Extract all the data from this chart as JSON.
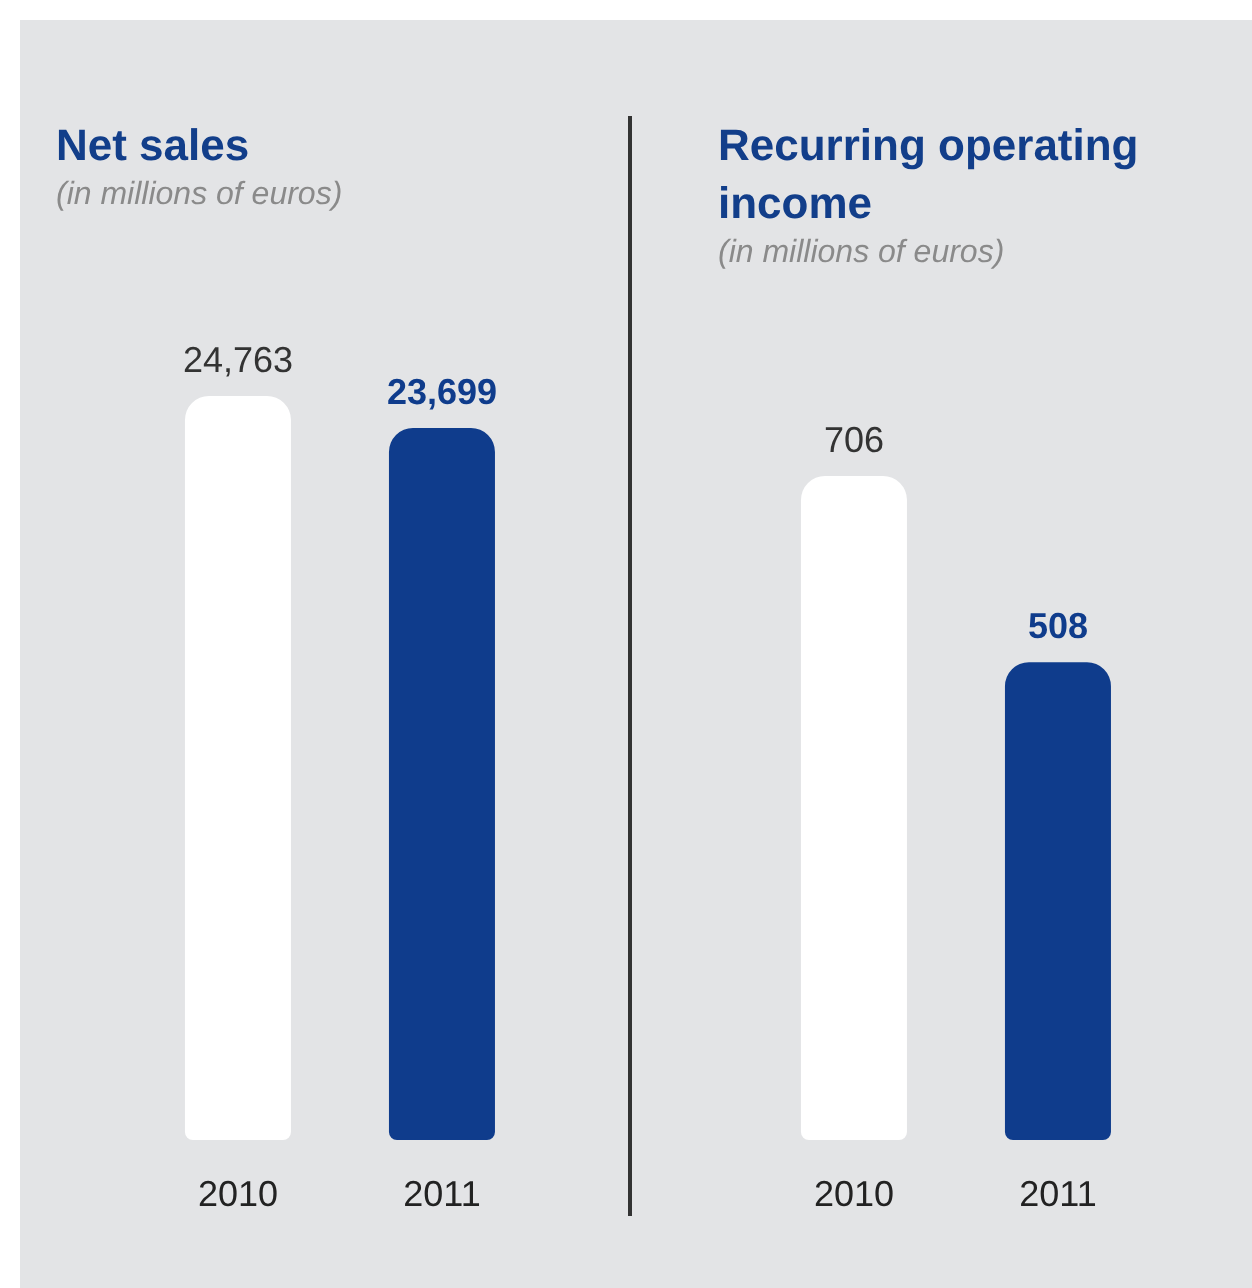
{
  "chart_data": [
    {
      "type": "bar",
      "title": "Net sales",
      "subtitle": "(in millions of euros)",
      "categories": [
        "2010",
        "2011"
      ],
      "values": [
        24763,
        23699
      ],
      "value_labels": [
        "24,763",
        "23,699"
      ],
      "colors": [
        "#ffffff",
        "#0f3c8c"
      ],
      "tick_labels": "x"
    },
    {
      "type": "bar",
      "title": "Recurring operating income",
      "subtitle": "(in millions of euros)",
      "categories": [
        "2010",
        "2011"
      ],
      "values": [
        706,
        508
      ],
      "value_labels": [
        "706",
        "508"
      ],
      "colors": [
        "#ffffff",
        "#0f3c8c"
      ],
      "tick_labels": "x"
    }
  ]
}
